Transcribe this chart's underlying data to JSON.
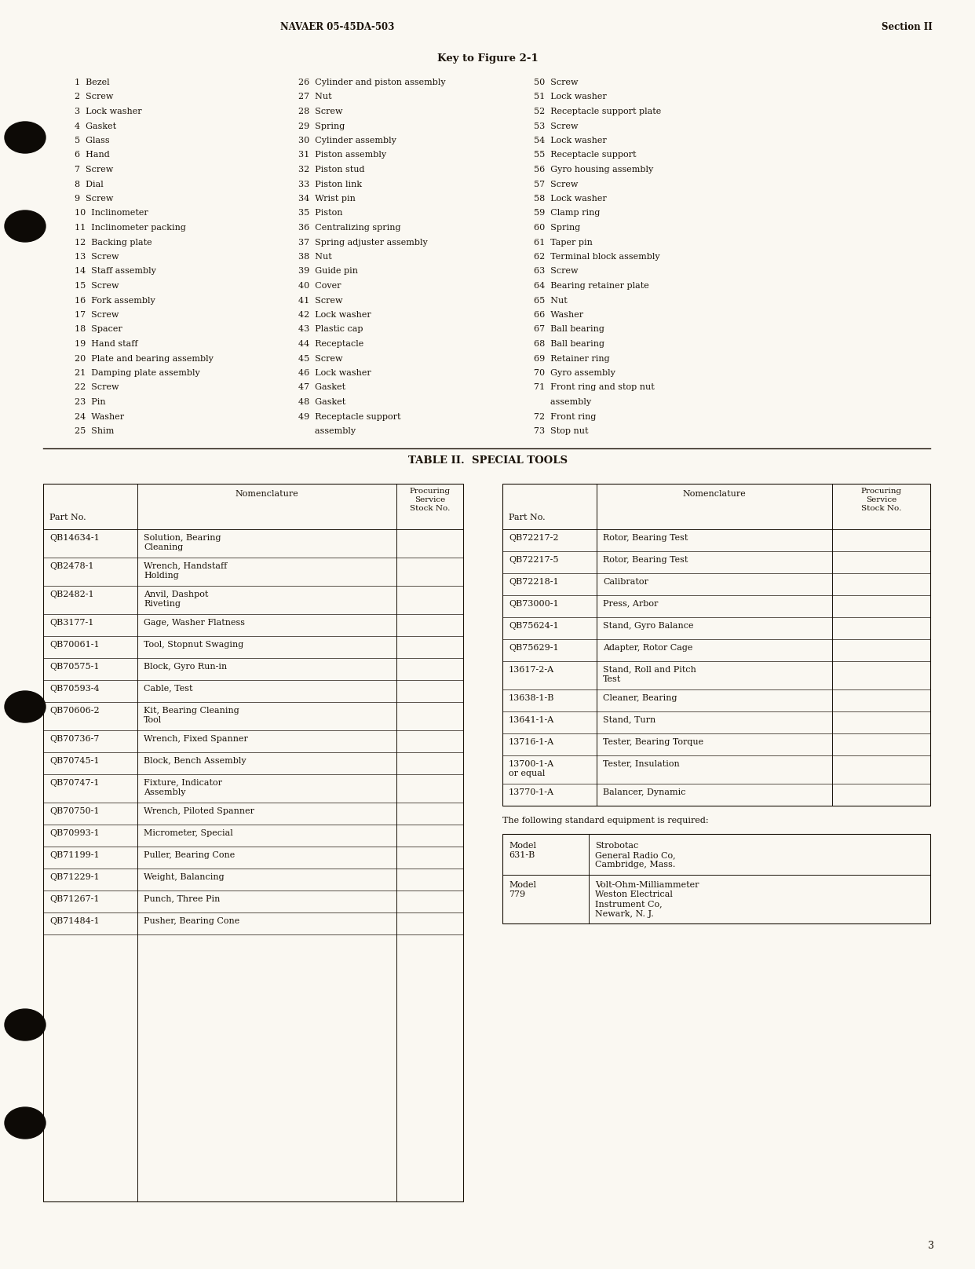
{
  "bg_color": "#faf8f2",
  "text_color": "#1a1208",
  "header_left": "NAVAER 05-45DA-503",
  "header_right": "Section II",
  "page_number": "3",
  "section_title": "Key to Figure 2-1",
  "table_title": "TABLE II.  SPECIAL TOOLS",
  "key_col1": [
    "1  Bezel",
    "2  Screw",
    "3  Lock washer",
    "4  Gasket",
    "5  Glass",
    "6  Hand",
    "7  Screw",
    "8  Dial",
    "9  Screw",
    "10  Inclinometer",
    "11  Inclinometer packing",
    "12  Backing plate",
    "13  Screw",
    "14  Staff assembly",
    "15  Screw",
    "16  Fork assembly",
    "17  Screw",
    "18  Spacer",
    "19  Hand staff",
    "20  Plate and bearing assembly",
    "21  Damping plate assembly",
    "22  Screw",
    "23  Pin",
    "24  Washer",
    "25  Shim"
  ],
  "key_col2": [
    "26  Cylinder and piston assembly",
    "27  Nut",
    "28  Screw",
    "29  Spring",
    "30  Cylinder assembly",
    "31  Piston assembly",
    "32  Piston stud",
    "33  Piston link",
    "34  Wrist pin",
    "35  Piston",
    "36  Centralizing spring",
    "37  Spring adjuster assembly",
    "38  Nut",
    "39  Guide pin",
    "40  Cover",
    "41  Screw",
    "42  Lock washer",
    "43  Plastic cap",
    "44  Receptacle",
    "45  Screw",
    "46  Lock washer",
    "47  Gasket",
    "48  Gasket",
    "49  Receptacle support",
    "      assembly"
  ],
  "key_col3": [
    "50  Screw",
    "51  Lock washer",
    "52  Receptacle support plate",
    "53  Screw",
    "54  Lock washer",
    "55  Receptacle support",
    "56  Gyro housing assembly",
    "57  Screw",
    "58  Lock washer",
    "59  Clamp ring",
    "60  Spring",
    "61  Taper pin",
    "62  Terminal block assembly",
    "63  Screw",
    "64  Bearing retainer plate",
    "65  Nut",
    "66  Washer",
    "67  Ball bearing",
    "68  Ball bearing",
    "69  Retainer ring",
    "70  Gyro assembly",
    "71  Front ring and stop nut",
    "      assembly",
    "72  Front ring",
    "73  Stop nut"
  ],
  "special_tools_left": [
    [
      "QB14634-1",
      "Solution, Bearing\nCleaning",
      ""
    ],
    [
      "QB2478-1",
      "Wrench, Handstaff\nHolding",
      ""
    ],
    [
      "QB2482-1",
      "Anvil, Dashpot\nRiveting",
      ""
    ],
    [
      "QB3177-1",
      "Gage, Washer Flatness",
      ""
    ],
    [
      "QB70061-1",
      "Tool, Stopnut Swaging",
      ""
    ],
    [
      "QB70575-1",
      "Block, Gyro Run-in",
      ""
    ],
    [
      "QB70593-4",
      "Cable, Test",
      ""
    ],
    [
      "QB70606-2",
      "Kit, Bearing Cleaning\nTool",
      ""
    ],
    [
      "QB70736-7",
      "Wrench, Fixed Spanner",
      ""
    ],
    [
      "QB70745-1",
      "Block, Bench Assembly",
      ""
    ],
    [
      "QB70747-1",
      "Fixture, Indicator\nAssembly",
      ""
    ],
    [
      "QB70750-1",
      "Wrench, Piloted Spanner",
      ""
    ],
    [
      "QB70993-1",
      "Micrometer, Special",
      ""
    ],
    [
      "QB71199-1",
      "Puller, Bearing Cone",
      ""
    ],
    [
      "QB71229-1",
      "Weight, Balancing",
      ""
    ],
    [
      "QB71267-1",
      "Punch, Three Pin",
      ""
    ],
    [
      "QB71484-1",
      "Pusher, Bearing Cone",
      ""
    ]
  ],
  "special_tools_right": [
    [
      "QB72217-2",
      "Rotor, Bearing Test",
      ""
    ],
    [
      "QB72217-5",
      "Rotor, Bearing Test",
      ""
    ],
    [
      "QB72218-1",
      "Calibrator",
      ""
    ],
    [
      "QB73000-1",
      "Press, Arbor",
      ""
    ],
    [
      "QB75624-1",
      "Stand, Gyro Balance",
      ""
    ],
    [
      "QB75629-1",
      "Adapter, Rotor Cage",
      ""
    ],
    [
      "13617-2-A",
      "Stand, Roll and Pitch\nTest",
      ""
    ],
    [
      "13638-1-B",
      "Cleaner, Bearing",
      ""
    ],
    [
      "13641-1-A",
      "Stand, Turn",
      ""
    ],
    [
      "13716-1-A",
      "Tester, Bearing Torque",
      ""
    ],
    [
      "13700-1-A\nor equal",
      "Tester, Insulation",
      ""
    ],
    [
      "13770-1-A",
      "Balancer, Dynamic",
      ""
    ]
  ],
  "standard_equipment_note": "The following standard equipment is required:",
  "standard_equipment": [
    [
      "Model\n631-B",
      "Strobotac\nGeneral Radio Co,\nCambridge, Mass."
    ],
    [
      "Model\n779",
      "Volt-Ohm-Milliammeter\nWeston Electrical\nInstrument Co,\nNewark, N. J."
    ]
  ]
}
